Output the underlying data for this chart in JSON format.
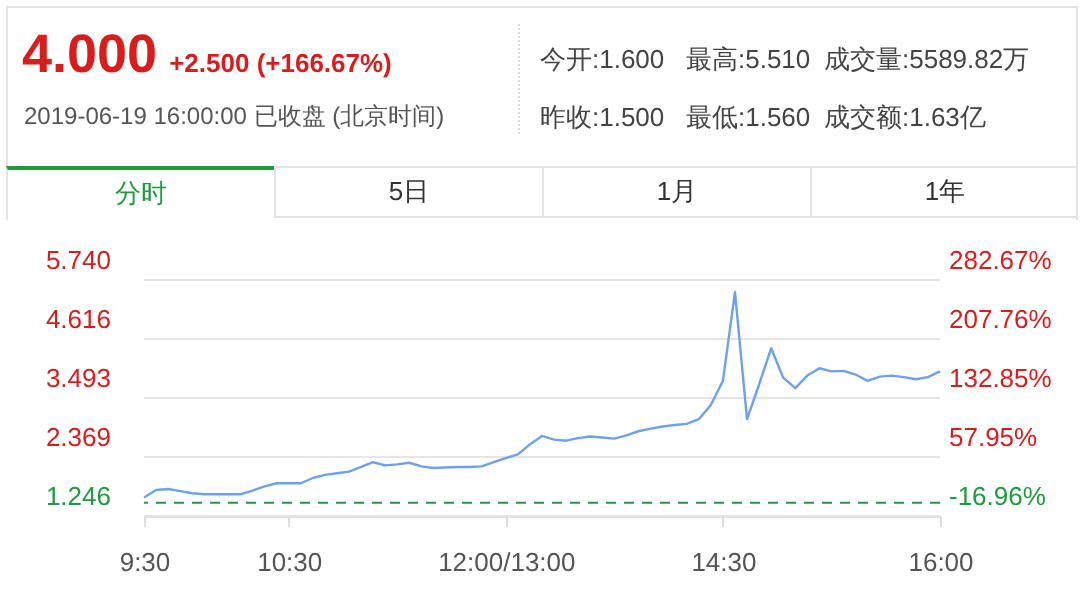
{
  "chart_data": {
    "type": "line",
    "title": "4.000",
    "subtitle": "+2.500 (+166.67%)",
    "annotations": [
      "2019-06-19 16:00:00 已收盘 (北京时间)",
      "今开:1.600",
      "最高:5.510",
      "成交量:5589.82万",
      "昨收:1.500",
      "最低:1.560",
      "成交额:1.63亿",
      "分时",
      "5日",
      "1月",
      "1年"
    ],
    "categories": [
      "9:30",
      null,
      null,
      null,
      null,
      null,
      null,
      null,
      null,
      null,
      null,
      null,
      "10:30",
      null,
      null,
      null,
      null,
      null,
      null,
      null,
      null,
      null,
      null,
      null,
      null,
      null,
      null,
      null,
      null,
      null,
      "12:00/13:00",
      null,
      null,
      null,
      null,
      null,
      null,
      null,
      null,
      null,
      null,
      null,
      null,
      null,
      null,
      null,
      null,
      null,
      "14:30",
      null,
      null,
      null,
      null,
      null,
      null,
      null,
      null,
      null,
      null,
      null,
      null,
      null,
      null,
      null,
      null,
      null,
      "16:00"
    ],
    "series": [
      {
        "color": "#6fa0ee",
        "values": [
          1.6,
          1.74,
          1.76,
          1.72,
          1.68,
          1.66,
          1.66,
          1.66,
          1.66,
          1.73,
          1.81,
          1.87,
          1.87,
          1.87,
          1.97,
          2.03,
          2.06,
          2.09,
          2.18,
          2.27,
          2.21,
          2.23,
          2.26,
          2.19,
          2.16,
          2.17,
          2.18,
          2.18,
          2.19,
          2.27,
          2.35,
          2.42,
          2.61,
          2.77,
          2.7,
          2.68,
          2.73,
          2.76,
          2.74,
          2.72,
          2.78,
          2.86,
          2.91,
          2.95,
          2.98,
          3.0,
          3.09,
          3.36,
          3.82,
          5.51,
          3.09,
          3.75,
          4.44,
          3.88,
          3.68,
          3.92,
          4.06,
          4.0,
          4.01,
          3.94,
          3.82,
          3.9,
          3.92,
          3.89,
          3.85,
          3.89,
          4.0
        ]
      }
    ],
    "ylim": [
      1.246,
      5.74
    ],
    "yticks": [
      1.246,
      2.369,
      3.493,
      4.616,
      {
        "value": 5.74,
        "label": "5.740"
      }
    ],
    "y2lim": [
      -16.96,
      282.67
    ],
    "y2ticks": [
      {
        "value": -16.96,
        "label": "-16.96%"
      },
      {
        "value": 57.95,
        "label": "57.95%"
      },
      {
        "value": 132.85,
        "label": "132.85%"
      },
      {
        "value": 207.76,
        "label": "207.76%"
      },
      {
        "value": 282.67,
        "label": "282.67%"
      }
    ],
    "ref_lines": [
      {
        "axis": "y",
        "value": 1.5,
        "color": "#1e9b3c",
        "line_style": "dashed"
      }
    ],
    "grid": "y"
  }
}
